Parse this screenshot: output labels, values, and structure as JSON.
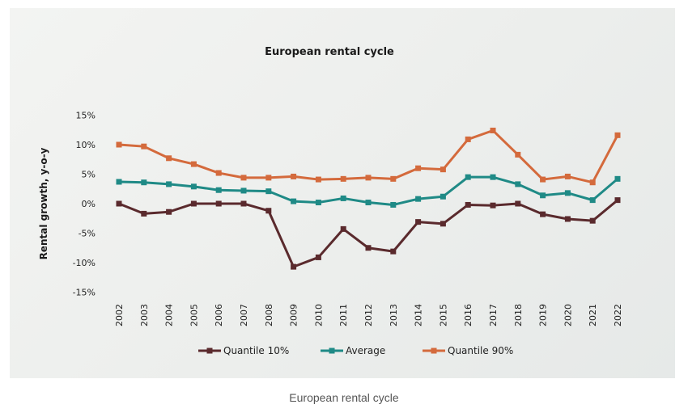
{
  "caption": "European rental cycle",
  "chart_data": {
    "type": "line",
    "title": "European rental cycle",
    "ylabel": "Rental growth, y-o-y",
    "xlabel": "",
    "x": [
      "2002",
      "2003",
      "2004",
      "2005",
      "2006",
      "2007",
      "2008",
      "2009",
      "2010",
      "2011",
      "2012",
      "2013",
      "2014",
      "2015",
      "2016",
      "2017",
      "2018",
      "2019",
      "2020",
      "2021",
      "2022"
    ],
    "ylim": [
      -15,
      15
    ],
    "yticks": [
      15,
      10,
      5,
      0,
      -5,
      -10,
      -15
    ],
    "ytick_labels": [
      "15%",
      "10%",
      "5%",
      "0%",
      "-5%",
      "-10%",
      "-15%"
    ],
    "grid": false,
    "legend_position": "bottom",
    "series": [
      {
        "name": "Quantile 10%",
        "color": "#5a2a2d",
        "values": [
          0,
          -1.7,
          -1.4,
          0,
          0,
          0,
          -1.2,
          -10.7,
          -9.1,
          -4.3,
          -7.5,
          -8.1,
          -3.1,
          -3.4,
          -0.2,
          -0.3,
          0,
          -1.8,
          -2.6,
          -2.9,
          0.6
        ]
      },
      {
        "name": "Average",
        "color": "#1f8a86",
        "values": [
          3.7,
          3.6,
          3.3,
          2.9,
          2.3,
          2.2,
          2.1,
          0.4,
          0.2,
          0.9,
          0.2,
          -0.2,
          0.8,
          1.2,
          4.5,
          4.5,
          3.3,
          1.4,
          1.8,
          0.6,
          4.2
        ]
      },
      {
        "name": "Quantile 90%",
        "color": "#d46a3c",
        "values": [
          10,
          9.7,
          7.7,
          6.7,
          5.2,
          4.4,
          4.4,
          4.6,
          4.1,
          4.2,
          4.4,
          4.2,
          6.0,
          5.8,
          10.9,
          12.4,
          8.3,
          4.1,
          4.6,
          3.6,
          11.6
        ]
      }
    ]
  }
}
